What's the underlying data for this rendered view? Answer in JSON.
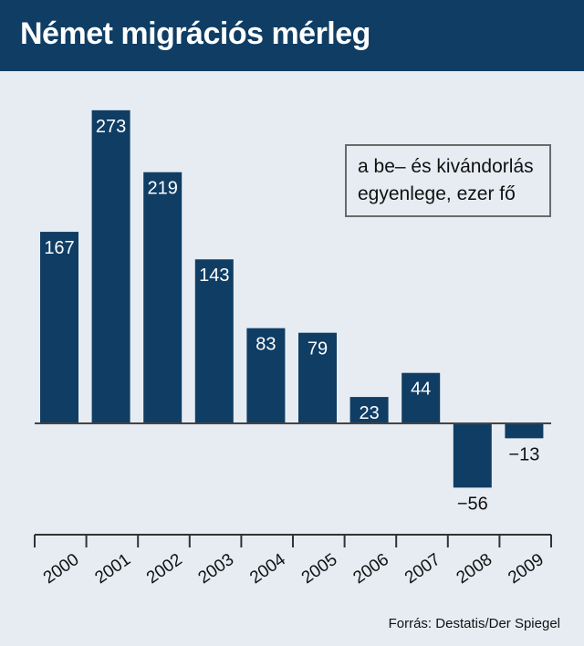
{
  "title": "Német migrációs mérleg",
  "legend": {
    "line1": "a be– és kivándorlás",
    "line2": "egyenlege, ezer fő"
  },
  "source": "Forrás: Destatis/Der Spiegel",
  "colors": {
    "header": "#0f3d64",
    "bar": "#0f3d64",
    "background": "#e6ecf2"
  },
  "chart_data": {
    "type": "bar",
    "title": "Német migrációs mérleg",
    "categories": [
      "2000",
      "2001",
      "2002",
      "2003",
      "2004",
      "2005",
      "2006",
      "2007",
      "2008",
      "2009"
    ],
    "values": [
      167,
      273,
      219,
      143,
      83,
      79,
      23,
      44,
      -56,
      -13
    ],
    "value_labels": [
      "167",
      "273",
      "219",
      "143",
      "83",
      "79",
      "23",
      "44",
      "−56",
      "−13"
    ],
    "ylabel": "",
    "xlabel": "",
    "grid": false,
    "legend_position": "top-right"
  }
}
